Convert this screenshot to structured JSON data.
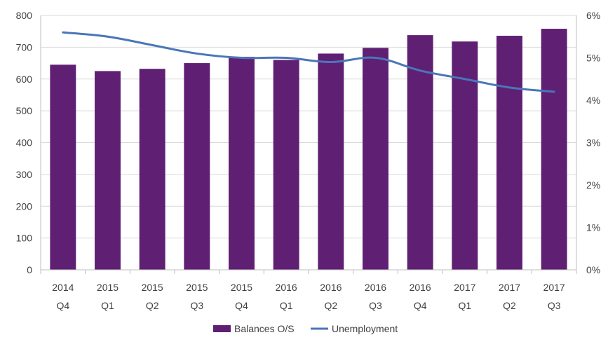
{
  "chart_data": {
    "type": "bar",
    "categories": [
      [
        "2014",
        "Q4"
      ],
      [
        "2015",
        "Q1"
      ],
      [
        "2015",
        "Q2"
      ],
      [
        "2015",
        "Q3"
      ],
      [
        "2015",
        "Q4"
      ],
      [
        "2016",
        "Q1"
      ],
      [
        "2016",
        "Q2"
      ],
      [
        "2016",
        "Q3"
      ],
      [
        "2016",
        "Q4"
      ],
      [
        "2017",
        "Q1"
      ],
      [
        "2017",
        "Q2"
      ],
      [
        "2017",
        "Q3"
      ]
    ],
    "series": [
      {
        "name": "Balances O/S",
        "type": "bar",
        "axis": "left",
        "color": "#5f1f73",
        "values": [
          645,
          625,
          632,
          650,
          670,
          660,
          680,
          698,
          738,
          718,
          736,
          758
        ]
      },
      {
        "name": "Unemployment",
        "type": "line",
        "axis": "right",
        "color": "#4a76b8",
        "values": [
          5.6,
          5.5,
          5.3,
          5.1,
          5.0,
          5.0,
          4.9,
          5.0,
          4.7,
          4.5,
          4.3,
          4.2
        ]
      }
    ],
    "y_left": {
      "ylim": [
        0,
        800
      ],
      "ticks": [
        "0",
        "100",
        "200",
        "300",
        "400",
        "500",
        "600",
        "700",
        "800"
      ]
    },
    "y_right": {
      "ylim": [
        0,
        6
      ],
      "ticks": [
        "0%",
        "1%",
        "2%",
        "3%",
        "4%",
        "5%",
        "6%"
      ]
    },
    "grid": true,
    "legend_position": "bottom"
  }
}
